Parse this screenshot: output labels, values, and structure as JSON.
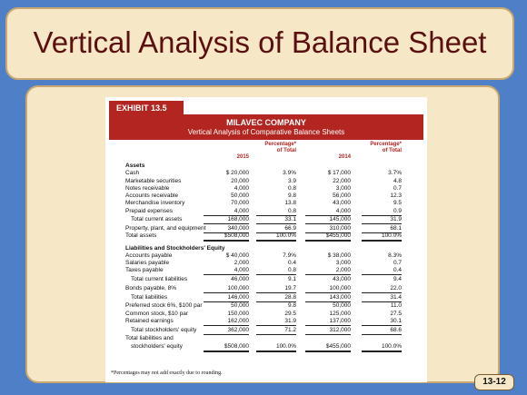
{
  "slide": {
    "title": "Vertical Analysis of Balance Sheet",
    "page_number": "13-12",
    "background_color": "#4f7fc6",
    "panel_color": "#f6e8c6"
  },
  "exhibit": {
    "tab": "EXHIBIT 13.5",
    "company": "MILAVEC COMPANY",
    "subtitle": "Vertical Analysis of Comparative Balance Sheets",
    "accent_color": "#b32521",
    "columns": {
      "y1": "2015",
      "p1_line1": "Percentage*",
      "p1_line2": "of Total",
      "y2": "2014",
      "p2_line1": "Percentage*",
      "p2_line2": "of Total"
    },
    "rows": [
      {
        "label": "Assets",
        "type": "section"
      },
      {
        "label": "Cash",
        "v1": "$ 20,000",
        "p1": "3.9%",
        "v2": "$ 17,000",
        "p2": "3.7%"
      },
      {
        "label": "Marketable securities",
        "v1": "20,000",
        "p1": "3.9",
        "v2": "22,000",
        "p2": "4.8"
      },
      {
        "label": "Notes receivable",
        "v1": "4,000",
        "p1": "0.8",
        "v2": "3,000",
        "p2": "0.7"
      },
      {
        "label": "Accounts receivable",
        "v1": "50,000",
        "p1": "9.8",
        "v2": "56,000",
        "p2": "12.3"
      },
      {
        "label": "Merchandise inventory",
        "v1": "70,000",
        "p1": "13.8",
        "v2": "43,000",
        "p2": "9.5"
      },
      {
        "label": "Prepaid expenses",
        "v1": "4,000",
        "p1": "0.8",
        "v2": "4,000",
        "p2": "0.9",
        "underline": true
      },
      {
        "label": "Total current assets",
        "v1": "168,000",
        "p1": "33.1",
        "v2": "145,000",
        "p2": "31.9",
        "indent": true,
        "underline": true
      },
      {
        "label": "Property, plant, and equipment",
        "v1": "340,000",
        "p1": "66.9",
        "v2": "310,000",
        "p2": "68.1",
        "underline": true
      },
      {
        "label": "Total assets",
        "v1": "$508,000",
        "p1": "100.0%",
        "v2": "$455,000",
        "p2": "100.0%",
        "double": true
      },
      {
        "label": "Liabilities and Stockholders' Equity",
        "type": "section"
      },
      {
        "label": "Accounts payable",
        "v1": "$ 40,000",
        "p1": "7.9%",
        "v2": "$ 38,000",
        "p2": "8.3%"
      },
      {
        "label": "Salaries payable",
        "v1": "2,000",
        "p1": "0.4",
        "v2": "3,000",
        "p2": "0.7"
      },
      {
        "label": "Taxes payable",
        "v1": "4,000",
        "p1": "0.8",
        "v2": "2,000",
        "p2": "0.4",
        "underline": true
      },
      {
        "label": "Total current liabilities",
        "v1": "46,000",
        "p1": "9.1",
        "v2": "43,000",
        "p2": "9.4",
        "indent": true
      },
      {
        "label": "Bonds payable, 8%",
        "v1": "100,000",
        "p1": "19.7",
        "v2": "100,000",
        "p2": "22.0",
        "underline": true
      },
      {
        "label": "Total liabilities",
        "v1": "146,000",
        "p1": "28.8",
        "v2": "143,000",
        "p2": "31.4",
        "indent": true,
        "underline": true
      },
      {
        "label": "Preferred stock 6%, $100 par",
        "v1": "50,000",
        "p1": "9.8",
        "v2": "50,000",
        "p2": "11.0"
      },
      {
        "label": "Common stock, $10 par",
        "v1": "150,000",
        "p1": "29.5",
        "v2": "125,000",
        "p2": "27.5"
      },
      {
        "label": "Retained earnings",
        "v1": "162,000",
        "p1": "31.9",
        "v2": "137,000",
        "p2": "30.1",
        "underline": true
      },
      {
        "label": "Total stockholders' equity",
        "v1": "362,000",
        "p1": "71.2",
        "v2": "312,000",
        "p2": "68.6",
        "indent": true,
        "underline": true
      },
      {
        "label": "Total liabilities and",
        "type": "label-only"
      },
      {
        "label": "stockholders' equity",
        "v1": "$508,000",
        "p1": "100.0%",
        "v2": "$455,000",
        "p2": "100.0%",
        "indent": true,
        "double": true
      }
    ],
    "footnote": "*Percentages may not add exactly due to rounding."
  }
}
